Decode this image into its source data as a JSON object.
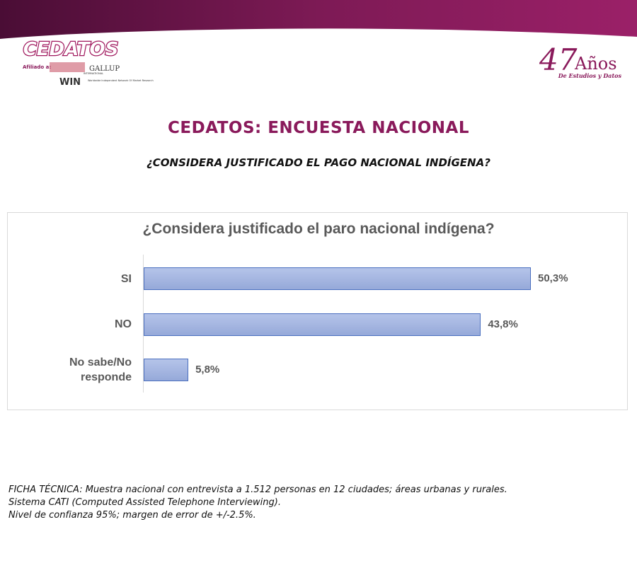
{
  "header": {
    "brand": "CEDATOS",
    "affiliated": "Afiliado a:",
    "gallup": "GALLUP",
    "gallup_sub": "INTERNATIONAL",
    "win": "WIN",
    "win_sub": "Worldwide Independent Network Of Market Research",
    "years_number": "47",
    "years_word": "Años",
    "years_sub": "De Estudios y Datos"
  },
  "title": "CEDATOS: ENCUESTA NACIONAL",
  "subtitle": "¿CONSIDERA JUSTIFICADO EL PAGO NACIONAL INDÍGENA?",
  "chart_data": {
    "type": "bar",
    "orientation": "horizontal",
    "title": "¿Considera justificado el paro nacional indígena?",
    "categories": [
      "SI",
      "NO",
      "No sabe/No responde"
    ],
    "values": [
      50.3,
      43.8,
      5.8
    ],
    "value_labels": [
      "50,3%",
      "43,8%",
      "5,8%"
    ],
    "color": "#9cb0e2"
  },
  "footer": [
    "FICHA TÉCNICA: Muestra nacional con entrevista a 1.512 personas en 12 ciudades; áreas urbanas y rurales.",
    "Sistema CATI (Computed Assisted Telephone Interviewing).",
    "Nivel de confianza 95%; margen de error de +/-2.5%."
  ]
}
